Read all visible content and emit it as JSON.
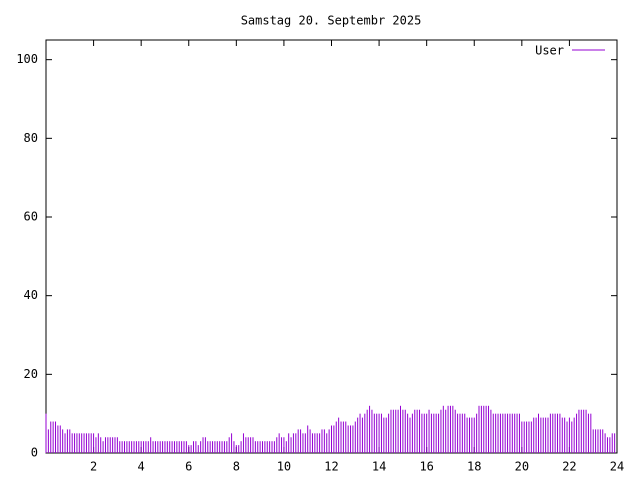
{
  "chart_data": {
    "type": "impulse",
    "title": "Samstag 20. Septembr 2025",
    "x": [
      0,
      0.1,
      0.2,
      0.3,
      0.4,
      0.5,
      0.6,
      0.7,
      0.8,
      0.9,
      1,
      1.1,
      1.2,
      1.3,
      1.4,
      1.5,
      1.6,
      1.7,
      1.8,
      1.9,
      2,
      2.1,
      2.2,
      2.3,
      2.4,
      2.5,
      2.6,
      2.7,
      2.8,
      2.9,
      3,
      3.1,
      3.2,
      3.3,
      3.4,
      3.5,
      3.6,
      3.7,
      3.8,
      3.9,
      4,
      4.1,
      4.2,
      4.3,
      4.4,
      4.5,
      4.6,
      4.7,
      4.8,
      4.9,
      5,
      5.1,
      5.2,
      5.3,
      5.4,
      5.5,
      5.6,
      5.7,
      5.8,
      5.9,
      6,
      6.1,
      6.2,
      6.3,
      6.4,
      6.5,
      6.6,
      6.7,
      6.8,
      6.9,
      7,
      7.1,
      7.2,
      7.3,
      7.4,
      7.5,
      7.6,
      7.7,
      7.8,
      7.9,
      8,
      8.1,
      8.2,
      8.3,
      8.4,
      8.5,
      8.6,
      8.7,
      8.8,
      8.9,
      9,
      9.1,
      9.2,
      9.3,
      9.4,
      9.5,
      9.6,
      9.7,
      9.8,
      9.9,
      10,
      10.1,
      10.2,
      10.3,
      10.4,
      10.5,
      10.6,
      10.7,
      10.8,
      10.9,
      11,
      11.1,
      11.2,
      11.3,
      11.4,
      11.5,
      11.6,
      11.7,
      11.8,
      11.9,
      12,
      12.1,
      12.2,
      12.3,
      12.4,
      12.5,
      12.6,
      12.7,
      12.8,
      12.9,
      13,
      13.1,
      13.2,
      13.3,
      13.4,
      13.5,
      13.6,
      13.7,
      13.8,
      13.9,
      14,
      14.1,
      14.2,
      14.3,
      14.4,
      14.5,
      14.6,
      14.7,
      14.8,
      14.9,
      15,
      15.1,
      15.2,
      15.3,
      15.4,
      15.5,
      15.6,
      15.7,
      15.8,
      15.9,
      16,
      16.1,
      16.2,
      16.3,
      16.4,
      16.5,
      16.6,
      16.7,
      16.8,
      16.9,
      17,
      17.1,
      17.2,
      17.3,
      17.4,
      17.5,
      17.6,
      17.7,
      17.8,
      17.9,
      18,
      18.1,
      18.2,
      18.3,
      18.4,
      18.5,
      18.6,
      18.7,
      18.8,
      18.9,
      19,
      19.1,
      19.2,
      19.3,
      19.4,
      19.5,
      19.6,
      19.7,
      19.8,
      19.9,
      20,
      20.1,
      20.2,
      20.3,
      20.4,
      20.5,
      20.6,
      20.7,
      20.8,
      20.9,
      21,
      21.1,
      21.2,
      21.3,
      21.4,
      21.5,
      21.6,
      21.7,
      21.8,
      21.9,
      22,
      22.1,
      22.2,
      22.3,
      22.4,
      22.5,
      22.6,
      22.7,
      22.8,
      22.9,
      23,
      23.1,
      23.2,
      23.3,
      23.4,
      23.5,
      23.6,
      23.7,
      23.8,
      23.9
    ],
    "series": [
      {
        "name": "User",
        "color": "#9400d3",
        "values": [
          10,
          6,
          8,
          8,
          8,
          7,
          7,
          6,
          5,
          6,
          6,
          5,
          5,
          5,
          5,
          5,
          5,
          5,
          5,
          5,
          5,
          4,
          5,
          4,
          3,
          4,
          4,
          4,
          4,
          4,
          4,
          3,
          3,
          3,
          3,
          3,
          3,
          3,
          3,
          3,
          3,
          3,
          3,
          3,
          4,
          3,
          3,
          3,
          3,
          3,
          3,
          3,
          3,
          3,
          3,
          3,
          3,
          3,
          3,
          3,
          2,
          2,
          3,
          3,
          2,
          3,
          4,
          4,
          3,
          3,
          3,
          3,
          3,
          3,
          3,
          3,
          3,
          4,
          5,
          3,
          2,
          2,
          3,
          5,
          4,
          4,
          4,
          4,
          3,
          3,
          3,
          3,
          3,
          3,
          3,
          3,
          3,
          4,
          5,
          4,
          4,
          3,
          5,
          4,
          5,
          5,
          6,
          6,
          5,
          5,
          7,
          6,
          5,
          5,
          5,
          5,
          6,
          6,
          5,
          6,
          7,
          7,
          8,
          9,
          8,
          8,
          8,
          7,
          7,
          7,
          8,
          9,
          10,
          9,
          10,
          11,
          12,
          11,
          10,
          10,
          10,
          10,
          9,
          9,
          10,
          11,
          11,
          11,
          11,
          12,
          11,
          11,
          10,
          9,
          10,
          11,
          11,
          11,
          10,
          10,
          10,
          11,
          10,
          10,
          10,
          10,
          11,
          12,
          11,
          12,
          12,
          12,
          11,
          10,
          10,
          10,
          10,
          9,
          9,
          9,
          9,
          10,
          12,
          12,
          12,
          12,
          12,
          11,
          10,
          10,
          10,
          10,
          10,
          10,
          10,
          10,
          10,
          10,
          10,
          10,
          8,
          8,
          8,
          8,
          8,
          9,
          9,
          10,
          9,
          9,
          9,
          9,
          10,
          10,
          10,
          10,
          10,
          9,
          9,
          8,
          9,
          8,
          9,
          10,
          11,
          11,
          11,
          11,
          10,
          10,
          6,
          6,
          6,
          6,
          6,
          5,
          4,
          4,
          5,
          5
        ]
      }
    ],
    "xlim": [
      0,
      24
    ],
    "xticks": [
      2,
      4,
      6,
      8,
      10,
      12,
      14,
      16,
      18,
      20,
      22,
      24
    ],
    "ylim": [
      0,
      105
    ],
    "yticks": [
      0,
      20,
      40,
      60,
      80,
      100
    ],
    "legend": "top-right"
  }
}
